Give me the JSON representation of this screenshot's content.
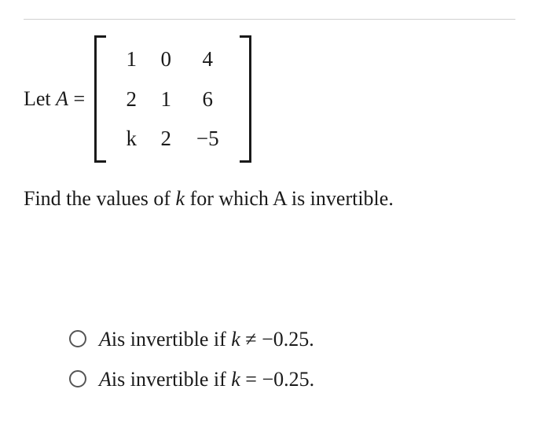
{
  "prompt": {
    "prefix": "Let ",
    "var": "A",
    "equals": " = "
  },
  "matrix": {
    "r0c0": "1",
    "r0c1": "0",
    "r0c2": "4",
    "r1c0": "2",
    "r1c1": "1",
    "r1c2": "6",
    "r2c0": "k",
    "r2c1": "2",
    "r2c2": "−5"
  },
  "question": {
    "prefix": "Find the values of ",
    "var": "k",
    "suffix": " for which A is invertible."
  },
  "options": {
    "opt1": {
      "varA": "A",
      "mid": "is invertible if",
      "varK": "k",
      "rel": " ≠ ",
      "val": "−0.25."
    },
    "opt2": {
      "varA": "A",
      "mid": "is invertible if",
      "varK": "k",
      "rel": " = ",
      "val": "−0.25."
    }
  },
  "colors": {
    "text": "#1a1a1a",
    "border": "#d0d0d0",
    "radio": "#555555",
    "background": "#ffffff"
  },
  "fontsize": {
    "body": 26,
    "matrix": 27
  }
}
